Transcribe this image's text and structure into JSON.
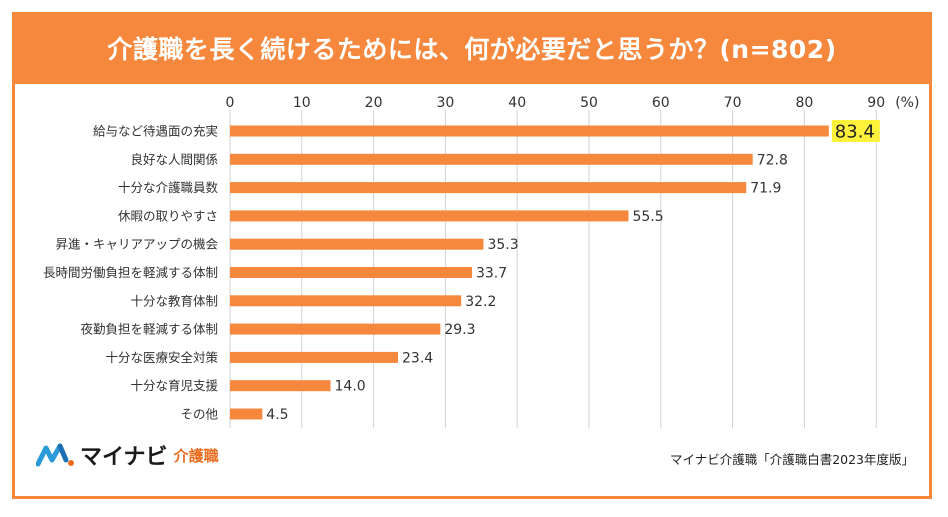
{
  "header": {
    "title": "介護職を長く続けるためには、何が必要だと思うか？(n=802)"
  },
  "footer": {
    "logo_main": "マイナビ",
    "logo_sub": "介護職",
    "source": "マイナビ介護職「介護職白書2023年度版」"
  },
  "colors": {
    "accent": "#f5883c",
    "bar": "#f5883c",
    "highlight": "#fff23a"
  },
  "chart_data": {
    "type": "bar",
    "orientation": "horizontal",
    "title": "介護職を長く続けるためには、何が必要だと思うか？(n=802)",
    "unit_label": "(%)",
    "categories": [
      "給与など待遇面の充実",
      "良好な人間関係",
      "十分な介護職員数",
      "休暇の取りやすさ",
      "昇進・キャリアアップの機会",
      "長時間労働負担を軽減する体制",
      "十分な教育体制",
      "夜勤負担を軽減する体制",
      "十分な医療安全対策",
      "十分な育児支援",
      "その他"
    ],
    "values": [
      83.4,
      72.8,
      71.9,
      55.5,
      35.3,
      33.7,
      32.2,
      29.3,
      23.4,
      14.0,
      4.5
    ],
    "value_labels": [
      "83.4",
      "72.8",
      "71.9",
      "55.5",
      "35.3",
      "33.7",
      "32.2",
      "29.3",
      "23.4",
      "14.0",
      "4.5"
    ],
    "highlighted_index": 0,
    "xlim": [
      0,
      90
    ],
    "ticks": [
      0,
      10,
      20,
      30,
      40,
      50,
      60,
      70,
      80,
      90
    ],
    "tick_labels": [
      "0",
      "10",
      "20",
      "30",
      "40",
      "50",
      "60",
      "70",
      "80",
      "90"
    ],
    "grid": true,
    "legend": "none"
  }
}
